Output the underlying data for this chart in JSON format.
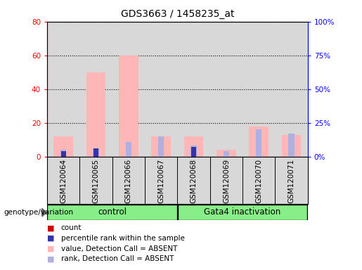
{
  "title": "GDS3663 / 1458235_at",
  "categories": [
    "GSM120064",
    "GSM120065",
    "GSM120066",
    "GSM120067",
    "GSM120068",
    "GSM120069",
    "GSM120070",
    "GSM120071"
  ],
  "ylim_left": [
    0,
    80
  ],
  "ylim_right": [
    0,
    100
  ],
  "yticks_left": [
    0,
    20,
    40,
    60,
    80
  ],
  "yticks_right": [
    0,
    25,
    50,
    75,
    100
  ],
  "ytick_labels_left": [
    "0",
    "20",
    "40",
    "60",
    "80"
  ],
  "ytick_labels_right": [
    "0%",
    "25%",
    "50%",
    "75%",
    "100%"
  ],
  "pink_bars": [
    12,
    50,
    60,
    12,
    12,
    4,
    18,
    13
  ],
  "blue_bars_rank": [
    5,
    6,
    11,
    15,
    8,
    4,
    20,
    17
  ],
  "red_bars_count": [
    2,
    1,
    1,
    1,
    1,
    1,
    1,
    1
  ],
  "blue_bars_percentile": [
    4,
    6,
    0,
    0,
    7,
    0,
    0,
    0
  ],
  "pink_color": "#ffb6b6",
  "blue_color": "#b0b0e0",
  "red_color": "#cc0000",
  "dark_blue_color": "#3333aa",
  "bg_plot": "#d8d8d8",
  "bg_group": "#88ee88",
  "legend_items": [
    {
      "color": "#cc0000",
      "label": "count"
    },
    {
      "color": "#3333aa",
      "label": "percentile rank within the sample"
    },
    {
      "color": "#ffb6b6",
      "label": "value, Detection Call = ABSENT"
    },
    {
      "color": "#b0b0e0",
      "label": "rank, Detection Call = ABSENT"
    }
  ],
  "genotype_label": "genotype/variation",
  "control_label": "control",
  "gata4_label": "Gata4 inactivation"
}
